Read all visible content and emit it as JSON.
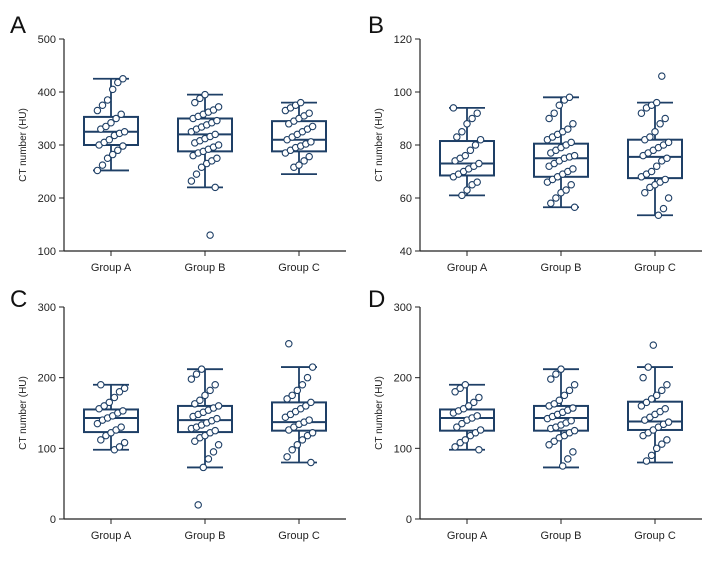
{
  "colors": {
    "box": "#1e3f66",
    "point_fill": "#ffffff",
    "axis": "#222222"
  },
  "chart_data": [
    {
      "type": "box",
      "panel": "A",
      "ylabel": "CT number (HU)",
      "ylim": [
        100,
        500
      ],
      "yticks": [
        100,
        200,
        300,
        400,
        500
      ],
      "categories": [
        "Group A",
        "Group B",
        "Group C"
      ],
      "boxes": [
        {
          "min": 252,
          "q1": 300,
          "median": 325,
          "q3": 353,
          "max": 425
        },
        {
          "min": 220,
          "q1": 288,
          "median": 320,
          "q3": 350,
          "max": 395
        },
        {
          "min": 245,
          "q1": 288,
          "median": 310,
          "q3": 345,
          "max": 380
        }
      ],
      "points": [
        [
          252,
          262,
          275,
          282,
          290,
          298,
          300,
          305,
          310,
          318,
          322,
          325,
          330,
          335,
          342,
          350,
          358,
          365,
          375,
          385,
          405,
          418,
          425
        ],
        [
          130,
          220,
          232,
          245,
          258,
          265,
          270,
          275,
          280,
          285,
          288,
          292,
          296,
          300,
          304,
          308,
          312,
          316,
          320,
          325,
          330,
          334,
          338,
          342,
          346,
          350,
          354,
          358,
          362,
          366,
          372,
          380,
          388,
          395
        ],
        [
          258,
          262,
          270,
          278,
          285,
          290,
          295,
          298,
          302,
          306,
          310,
          315,
          320,
          325,
          330,
          335,
          340,
          345,
          350,
          355,
          360,
          365,
          370,
          375,
          380
        ]
      ]
    },
    {
      "type": "box",
      "panel": "B",
      "ylabel": "CT number (HU)",
      "ylim": [
        40,
        120
      ],
      "yticks": [
        40,
        60,
        80,
        100,
        120
      ],
      "categories": [
        "Group A",
        "Group B",
        "Group C"
      ],
      "boxes": [
        {
          "min": 61,
          "q1": 68.5,
          "median": 73,
          "q3": 81.5,
          "max": 94
        },
        {
          "min": 56.5,
          "q1": 68,
          "median": 75,
          "q3": 80.5,
          "max": 98
        },
        {
          "min": 53.5,
          "q1": 67.5,
          "median": 75.5,
          "q3": 82,
          "max": 96
        }
      ],
      "points": [
        [
          61,
          63,
          65,
          66,
          68,
          69,
          70,
          71,
          72,
          73,
          74,
          75,
          76,
          78,
          80,
          82,
          83,
          85,
          88,
          90,
          92,
          94
        ],
        [
          56.5,
          58,
          60,
          62,
          63,
          65,
          66,
          67,
          68,
          69,
          70,
          71,
          72,
          73,
          74,
          75,
          75.5,
          76,
          77,
          78,
          79,
          80,
          81,
          82,
          83,
          84,
          85,
          86,
          88,
          90,
          92,
          95,
          97,
          98
        ],
        [
          53.5,
          56,
          60,
          62,
          64,
          65,
          66,
          67,
          68,
          69,
          70,
          72,
          74,
          75,
          76,
          77,
          78,
          79,
          80,
          81,
          82,
          83,
          85,
          88,
          90,
          92,
          94,
          95,
          96,
          106
        ]
      ]
    },
    {
      "type": "box",
      "panel": "C",
      "ylabel": "CT number (HU)",
      "ylim": [
        0,
        300
      ],
      "yticks": [
        0,
        100,
        200,
        300
      ],
      "categories": [
        "Group A",
        "Group B",
        "Group C"
      ],
      "boxes": [
        {
          "min": 98,
          "q1": 123,
          "median": 143,
          "q3": 155,
          "max": 190
        },
        {
          "min": 73,
          "q1": 123,
          "median": 140,
          "q3": 160,
          "max": 212
        },
        {
          "min": 80,
          "q1": 125,
          "median": 137,
          "q3": 165,
          "max": 215
        }
      ],
      "points": [
        [
          98,
          102,
          108,
          112,
          118,
          122,
          126,
          130,
          135,
          140,
          143,
          146,
          150,
          153,
          156,
          160,
          165,
          172,
          180,
          185,
          190
        ],
        [
          20,
          73,
          85,
          95,
          105,
          110,
          115,
          118,
          122,
          125,
          128,
          130,
          133,
          136,
          139,
          142,
          145,
          148,
          151,
          154,
          157,
          160,
          163,
          168,
          175,
          182,
          190,
          198,
          205,
          212
        ],
        [
          80,
          88,
          98,
          105,
          112,
          118,
          122,
          126,
          130,
          134,
          137,
          140,
          144,
          148,
          152,
          156,
          160,
          165,
          170,
          175,
          182,
          190,
          200,
          215,
          248
        ]
      ]
    },
    {
      "type": "box",
      "panel": "D",
      "ylabel": "CT number (HU)",
      "ylim": [
        0,
        300
      ],
      "yticks": [
        0,
        100,
        200,
        300
      ],
      "categories": [
        "Group A",
        "Group B",
        "Group C"
      ],
      "boxes": [
        {
          "min": 98,
          "q1": 125,
          "median": 143,
          "q3": 155,
          "max": 190
        },
        {
          "min": 73,
          "q1": 125,
          "median": 143,
          "q3": 160,
          "max": 212
        },
        {
          "min": 80,
          "q1": 126,
          "median": 138,
          "q3": 166,
          "max": 215
        }
      ],
      "points": [
        [
          98,
          102,
          108,
          112,
          118,
          122,
          126,
          130,
          135,
          140,
          143,
          146,
          150,
          153,
          156,
          160,
          165,
          172,
          180,
          185,
          190
        ],
        [
          75,
          85,
          95,
          105,
          110,
          115,
          118,
          122,
          125,
          128,
          130,
          133,
          136,
          139,
          142,
          145,
          148,
          151,
          154,
          157,
          160,
          163,
          168,
          175,
          182,
          190,
          198,
          205,
          212
        ],
        [
          82,
          90,
          100,
          106,
          112,
          118,
          122,
          126,
          130,
          134,
          137,
          140,
          144,
          148,
          152,
          156,
          160,
          165,
          170,
          175,
          182,
          190,
          200,
          215,
          246
        ]
      ]
    }
  ]
}
